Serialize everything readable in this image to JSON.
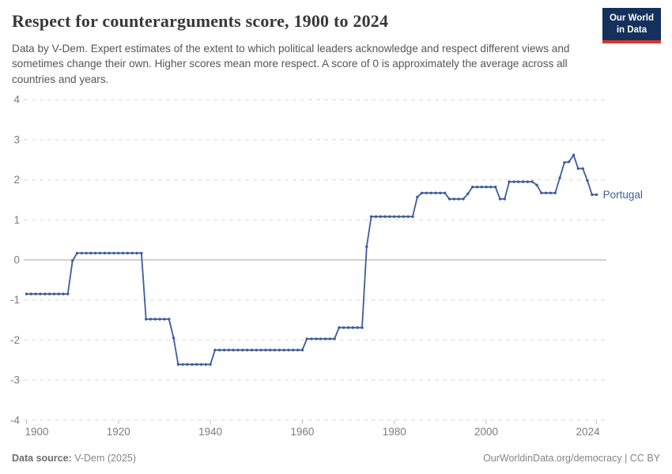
{
  "header": {
    "title": "Respect for counterarguments score, 1900 to 2024",
    "subtitle": "Data by V-Dem. Expert estimates of the extent to which political leaders acknowledge and respect different views and sometimes change their own. Higher scores mean more respect. A score of 0 is approximately the average across all countries and years.",
    "logo_line1": "Our World",
    "logo_line2": "in Data"
  },
  "footer": {
    "source_label": "Data source:",
    "source_value": " V-Dem (2025)",
    "right_text": "OurWorldinData.org/democracy | CC BY"
  },
  "colors": {
    "series": "#3d5c9c",
    "grid": "#dcdcdc",
    "zero_line": "#a3a3a3",
    "axis_text": "#7d7d7d",
    "logo_bg": "#14305c",
    "logo_stripe": "#e0342f"
  },
  "chart_data": {
    "type": "line",
    "title": "Respect for counterarguments score, 1900 to 2024",
    "xlabel": "",
    "ylabel": "",
    "xlim": [
      1900,
      2024
    ],
    "ylim": [
      -4,
      4
    ],
    "x_ticks": [
      1900,
      1920,
      1940,
      1960,
      1980,
      2000,
      2024
    ],
    "y_ticks": [
      4,
      3,
      2,
      1,
      0,
      -1,
      -2,
      -3,
      -4
    ],
    "grid": "horizontal dashed, solid line at 0",
    "legend_position": "end-of-line label",
    "entity_label": "Portugal",
    "series": [
      {
        "name": "Portugal",
        "color": "#3d5c9c",
        "points": [
          [
            1900,
            -0.85
          ],
          [
            1901,
            -0.85
          ],
          [
            1902,
            -0.85
          ],
          [
            1903,
            -0.85
          ],
          [
            1904,
            -0.85
          ],
          [
            1905,
            -0.85
          ],
          [
            1906,
            -0.85
          ],
          [
            1907,
            -0.85
          ],
          [
            1908,
            -0.85
          ],
          [
            1909,
            -0.85
          ],
          [
            1910,
            -0.02
          ],
          [
            1911,
            0.17
          ],
          [
            1912,
            0.17
          ],
          [
            1913,
            0.17
          ],
          [
            1914,
            0.17
          ],
          [
            1915,
            0.17
          ],
          [
            1916,
            0.17
          ],
          [
            1917,
            0.17
          ],
          [
            1918,
            0.17
          ],
          [
            1919,
            0.17
          ],
          [
            1920,
            0.17
          ],
          [
            1921,
            0.17
          ],
          [
            1922,
            0.17
          ],
          [
            1923,
            0.17
          ],
          [
            1924,
            0.17
          ],
          [
            1925,
            0.17
          ],
          [
            1926,
            -1.48
          ],
          [
            1927,
            -1.48
          ],
          [
            1928,
            -1.48
          ],
          [
            1929,
            -1.48
          ],
          [
            1930,
            -1.48
          ],
          [
            1931,
            -1.48
          ],
          [
            1932,
            -1.95
          ],
          [
            1933,
            -2.61
          ],
          [
            1934,
            -2.61
          ],
          [
            1935,
            -2.61
          ],
          [
            1936,
            -2.61
          ],
          [
            1937,
            -2.61
          ],
          [
            1938,
            -2.61
          ],
          [
            1939,
            -2.61
          ],
          [
            1940,
            -2.61
          ],
          [
            1941,
            -2.25
          ],
          [
            1942,
            -2.25
          ],
          [
            1943,
            -2.25
          ],
          [
            1944,
            -2.25
          ],
          [
            1945,
            -2.25
          ],
          [
            1946,
            -2.25
          ],
          [
            1947,
            -2.25
          ],
          [
            1948,
            -2.25
          ],
          [
            1949,
            -2.25
          ],
          [
            1950,
            -2.25
          ],
          [
            1951,
            -2.25
          ],
          [
            1952,
            -2.25
          ],
          [
            1953,
            -2.25
          ],
          [
            1954,
            -2.25
          ],
          [
            1955,
            -2.25
          ],
          [
            1956,
            -2.25
          ],
          [
            1957,
            -2.25
          ],
          [
            1958,
            -2.25
          ],
          [
            1959,
            -2.25
          ],
          [
            1960,
            -2.25
          ],
          [
            1961,
            -1.97
          ],
          [
            1962,
            -1.97
          ],
          [
            1963,
            -1.97
          ],
          [
            1964,
            -1.97
          ],
          [
            1965,
            -1.97
          ],
          [
            1966,
            -1.97
          ],
          [
            1967,
            -1.97
          ],
          [
            1968,
            -1.69
          ],
          [
            1969,
            -1.69
          ],
          [
            1970,
            -1.69
          ],
          [
            1971,
            -1.69
          ],
          [
            1972,
            -1.69
          ],
          [
            1973,
            -1.69
          ],
          [
            1974,
            0.33
          ],
          [
            1975,
            1.08
          ],
          [
            1976,
            1.08
          ],
          [
            1977,
            1.08
          ],
          [
            1978,
            1.08
          ],
          [
            1979,
            1.08
          ],
          [
            1980,
            1.08
          ],
          [
            1981,
            1.08
          ],
          [
            1982,
            1.08
          ],
          [
            1983,
            1.08
          ],
          [
            1984,
            1.08
          ],
          [
            1985,
            1.57
          ],
          [
            1986,
            1.67
          ],
          [
            1987,
            1.67
          ],
          [
            1988,
            1.67
          ],
          [
            1989,
            1.67
          ],
          [
            1990,
            1.67
          ],
          [
            1991,
            1.67
          ],
          [
            1992,
            1.52
          ],
          [
            1993,
            1.52
          ],
          [
            1994,
            1.52
          ],
          [
            1995,
            1.52
          ],
          [
            1996,
            1.65
          ],
          [
            1997,
            1.82
          ],
          [
            1998,
            1.82
          ],
          [
            1999,
            1.82
          ],
          [
            2000,
            1.82
          ],
          [
            2001,
            1.82
          ],
          [
            2002,
            1.82
          ],
          [
            2003,
            1.52
          ],
          [
            2004,
            1.52
          ],
          [
            2005,
            1.95
          ],
          [
            2006,
            1.95
          ],
          [
            2007,
            1.95
          ],
          [
            2008,
            1.95
          ],
          [
            2009,
            1.95
          ],
          [
            2010,
            1.95
          ],
          [
            2011,
            1.87
          ],
          [
            2012,
            1.67
          ],
          [
            2013,
            1.67
          ],
          [
            2014,
            1.67
          ],
          [
            2015,
            1.67
          ],
          [
            2016,
            2.05
          ],
          [
            2017,
            2.43
          ],
          [
            2018,
            2.45
          ],
          [
            2019,
            2.62
          ],
          [
            2020,
            2.28
          ],
          [
            2021,
            2.28
          ],
          [
            2022,
            1.98
          ],
          [
            2023,
            1.63
          ],
          [
            2024,
            1.63
          ]
        ]
      }
    ]
  }
}
